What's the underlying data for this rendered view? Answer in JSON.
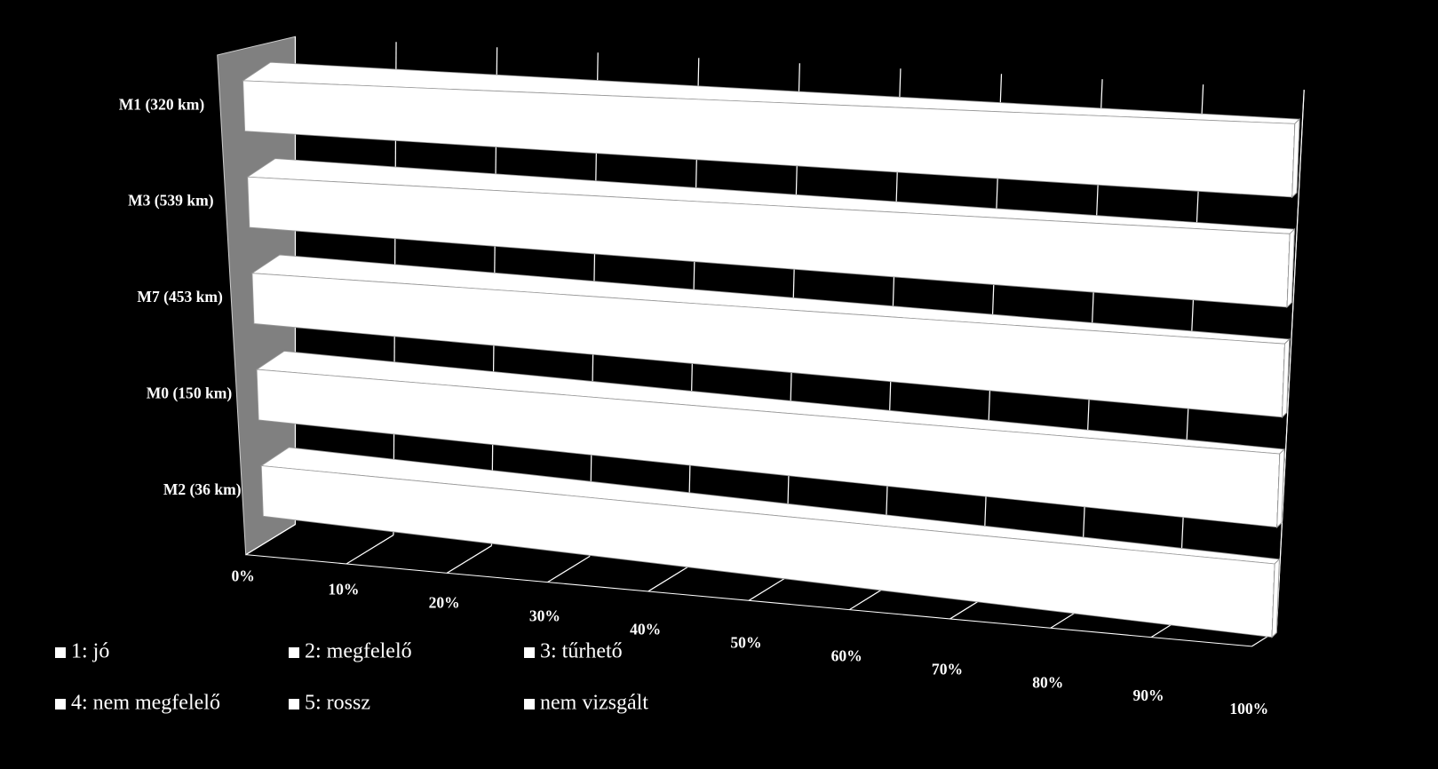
{
  "chart_data": {
    "type": "bar3d",
    "orientation": "horizontal",
    "stacked": true,
    "categories": [
      "M1 (320 km)",
      "M3 (539 km)",
      "M7 (453 km)",
      "M0 (150 km)",
      "M2 (36 km)"
    ],
    "series": [
      {
        "name": "1: jó",
        "color": "#ffffff",
        "values": [
          100,
          100,
          100,
          100,
          100
        ]
      },
      {
        "name": "2: megfelelő",
        "color": "#ffffff",
        "values": [
          0,
          0,
          0,
          0,
          0
        ]
      },
      {
        "name": "3: tűrhető",
        "color": "#ffffff",
        "values": [
          0,
          0,
          0,
          0,
          0
        ]
      },
      {
        "name": "4: nem megfelelő",
        "color": "#ffffff",
        "values": [
          0,
          0,
          0,
          0,
          0
        ]
      },
      {
        "name": "5: rossz",
        "color": "#ffffff",
        "values": [
          0,
          0,
          0,
          0,
          0
        ]
      },
      {
        "name": "nem vizsgált",
        "color": "#ffffff",
        "values": [
          0,
          0,
          0,
          0,
          0
        ]
      }
    ],
    "xlim": [
      0,
      100
    ],
    "xticks": [
      {
        "value": 0,
        "label": "0%"
      },
      {
        "value": 10,
        "label": "10%"
      },
      {
        "value": 20,
        "label": "20%"
      },
      {
        "value": 30,
        "label": "30%"
      },
      {
        "value": 40,
        "label": "40%"
      },
      {
        "value": 50,
        "label": "50%"
      },
      {
        "value": 60,
        "label": "60%"
      },
      {
        "value": 70,
        "label": "70%"
      },
      {
        "value": 80,
        "label": "80%"
      },
      {
        "value": 90,
        "label": "90%"
      },
      {
        "value": 100,
        "label": "100%"
      }
    ],
    "grid": true,
    "legend": "bottom"
  }
}
